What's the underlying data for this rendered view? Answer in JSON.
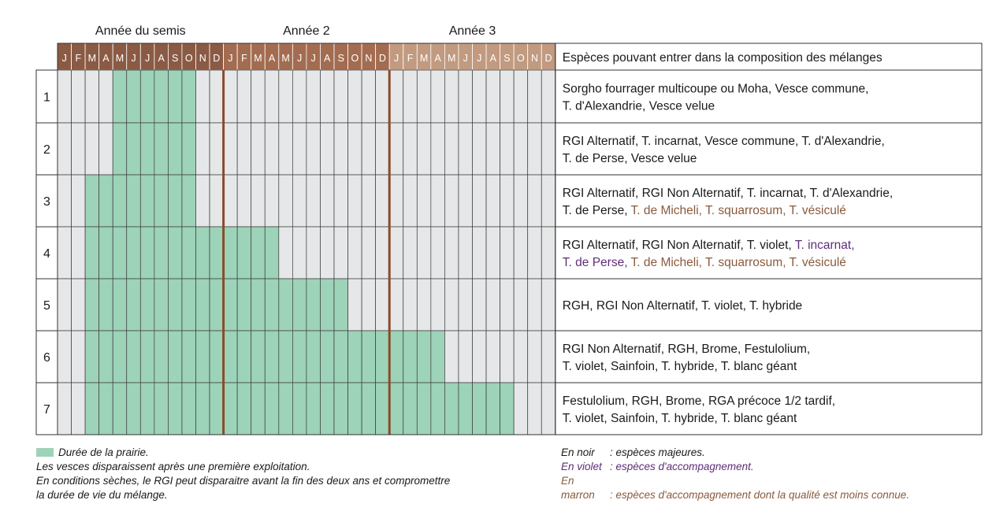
{
  "chart_data": {
    "type": "table",
    "year_labels": [
      "Année du semis",
      "Année 2",
      "Année 3"
    ],
    "month_labels": [
      "J",
      "F",
      "M",
      "A",
      "M",
      "J",
      "J",
      "A",
      "S",
      "O",
      "N",
      "D"
    ],
    "species_header": "Espèces pouvant entrer dans la composition des mélanges",
    "rows": [
      {
        "label": "1",
        "start_month": 5,
        "end_month": 10,
        "species": [
          [
            [
              "Sorgho fourrager multicoupe ou Moha, Vesce commune,",
              "black"
            ]
          ],
          [
            [
              "T. d'Alexandrie, Vesce velue",
              "black"
            ]
          ]
        ]
      },
      {
        "label": "2",
        "start_month": 5,
        "end_month": 10,
        "species": [
          [
            [
              "RGI Alternatif, T. incarnat, Vesce commune, T. d'Alexandrie,",
              "black"
            ]
          ],
          [
            [
              "T. de Perse, Vesce velue",
              "black"
            ]
          ]
        ]
      },
      {
        "label": "3",
        "start_month": 3,
        "end_month": 10,
        "species": [
          [
            [
              "RGI Alternatif, RGI Non Alternatif, T. incarnat, T. d'Alexandrie,",
              "black"
            ]
          ],
          [
            [
              "T. de Perse, ",
              "black"
            ],
            [
              "T. de Micheli, T. squarrosum, T. vésiculé",
              "brown"
            ]
          ]
        ]
      },
      {
        "label": "4",
        "start_month": 3,
        "end_month": 16,
        "species": [
          [
            [
              "RGI Alternatif, RGI Non Alternatif, T. violet, ",
              "black"
            ],
            [
              "T. incarnat,",
              "violet"
            ]
          ],
          [
            [
              "T. de Perse, ",
              "violet"
            ],
            [
              "T. de Micheli, T. squarrosum, T. vésiculé",
              "brown"
            ]
          ]
        ]
      },
      {
        "label": "5",
        "start_month": 3,
        "end_month": 21,
        "species": [
          [
            [
              "RGH, RGI Non Alternatif, T. violet, T. hybride",
              "black"
            ]
          ]
        ]
      },
      {
        "label": "6",
        "start_month": 3,
        "end_month": 28,
        "species": [
          [
            [
              "RGI Non Alternatif, RGH, Brome, Festulolium,",
              "black"
            ]
          ],
          [
            [
              "T. violet, Sainfoin, T. hybride, T. blanc géant",
              "black"
            ]
          ]
        ]
      },
      {
        "label": "7",
        "start_month": 3,
        "end_month": 33,
        "species": [
          [
            [
              "Festulolium, RGH, Brome, RGA précoce 1/2 tardif,",
              "black"
            ]
          ],
          [
            [
              "T. violet, Sainfoin, T. hybride, T. blanc géant",
              "black"
            ]
          ]
        ]
      }
    ],
    "colors": {
      "duration": "#9dd3b8",
      "empty": "#e6e7e8",
      "year_separator": "#8b4a2b",
      "month_header": [
        "#8a5a44",
        "#a36c50",
        "#c19a80"
      ],
      "black": "#1a1a1a",
      "violet": "#5e2d79",
      "brown": "#8a5a3c"
    }
  },
  "legend": {
    "duration_label": "Durée de la prairie.",
    "note_vesces": "Les vesces disparaissent après une première exploitation.",
    "note_rgi_1": "En conditions sèches, le RGI peut disparaitre avant la fin des deux ans et compromettre",
    "note_rgi_2": "la durée de vie du mélange.",
    "black_key": "En noir",
    "black_desc": ": espèces majeures.",
    "violet_key": "En violet",
    "violet_desc": ": espèces d'accompagnement.",
    "brown_key": "En marron",
    "brown_desc": ": espèces d'accompagnement dont la qualité est moins connue."
  }
}
